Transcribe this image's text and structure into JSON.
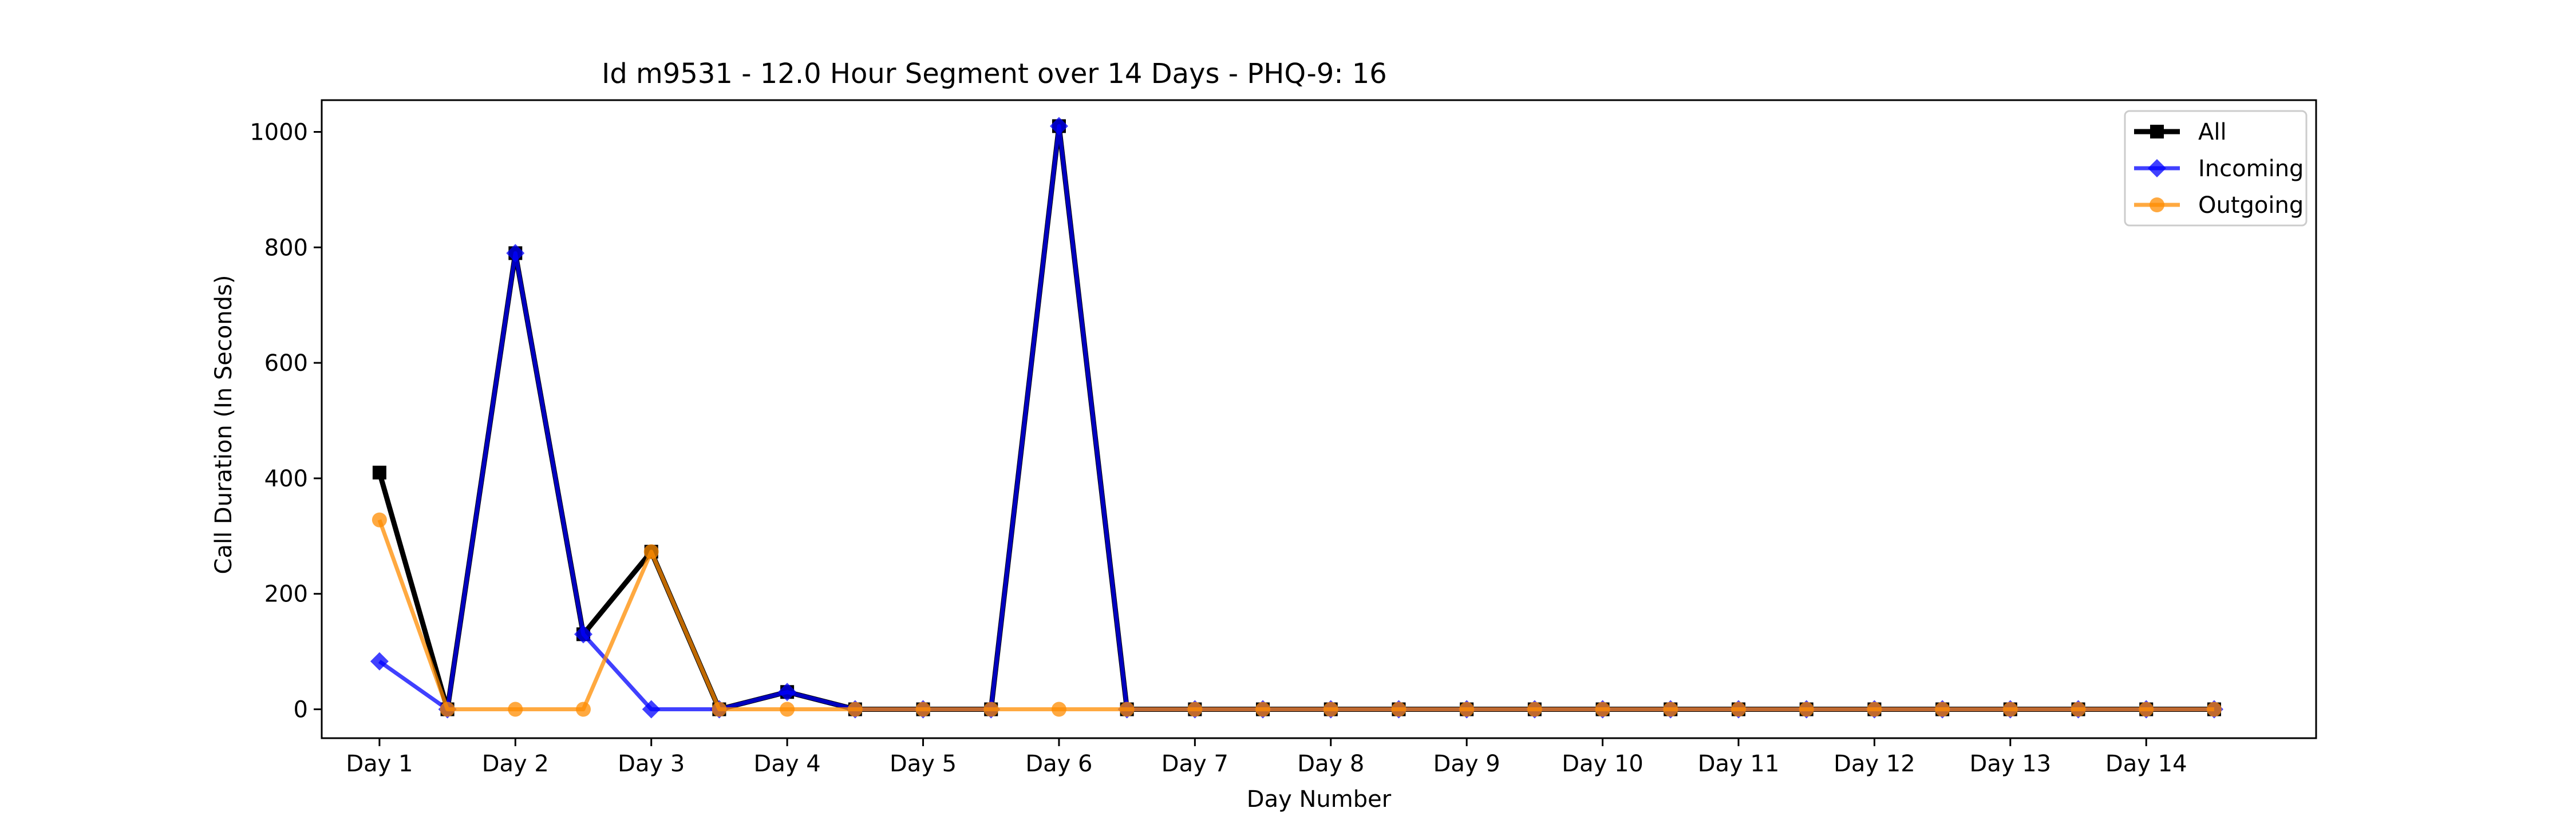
{
  "chart_data": {
    "type": "line",
    "title": "Id m9531 - 12.0 Hour Segment over 14 Days - PHQ-9: 16",
    "xlabel": "Day Number",
    "ylabel": "Call Duration (In Seconds)",
    "ylim": [
      -50,
      1055
    ],
    "yticks": [
      0,
      200,
      400,
      600,
      800,
      1000
    ],
    "xlim": [
      -0.85,
      28.5
    ],
    "categories": [
      "Day 1",
      "Day 2",
      "Day 3",
      "Day 4",
      "Day 5",
      "Day 6",
      "Day 7",
      "Day 8",
      "Day 9",
      "Day 10",
      "Day 11",
      "Day 12",
      "Day 13",
      "Day 14"
    ],
    "category_positions": [
      0,
      2,
      4,
      6,
      8,
      10,
      12,
      14,
      16,
      18,
      20,
      22,
      24,
      26
    ],
    "x": [
      0,
      1,
      2,
      3,
      4,
      5,
      6,
      7,
      8,
      9,
      10,
      11,
      12,
      13,
      14,
      15,
      16,
      17,
      18,
      19,
      20,
      21,
      22,
      23,
      24,
      25,
      26,
      27
    ],
    "legend_position": "upper-right",
    "grid": false,
    "series": [
      {
        "name": "All",
        "color": "#000000",
        "marker": "square",
        "line_width": 9,
        "opacity": 1,
        "values": [
          410,
          0,
          790,
          130,
          273,
          0,
          30,
          0,
          0,
          0,
          1010,
          0,
          0,
          0,
          0,
          0,
          0,
          0,
          0,
          0,
          0,
          0,
          0,
          0,
          0,
          0,
          0,
          0
        ]
      },
      {
        "name": "Incoming",
        "color": "#0000ff",
        "marker": "diamond",
        "line_width": 7,
        "opacity": 0.75,
        "values": [
          83,
          0,
          790,
          130,
          0,
          0,
          30,
          0,
          0,
          0,
          1010,
          0,
          0,
          0,
          0,
          0,
          0,
          0,
          0,
          0,
          0,
          0,
          0,
          0,
          0,
          0,
          0,
          0
        ]
      },
      {
        "name": "Outgoing",
        "color": "#ff8c00",
        "marker": "circle",
        "line_width": 7,
        "opacity": 0.75,
        "values": [
          328,
          0,
          0,
          0,
          273,
          0,
          0,
          0,
          0,
          0,
          0,
          0,
          0,
          0,
          0,
          0,
          0,
          0,
          0,
          0,
          0,
          0,
          0,
          0,
          0,
          0,
          0,
          0
        ]
      }
    ]
  }
}
